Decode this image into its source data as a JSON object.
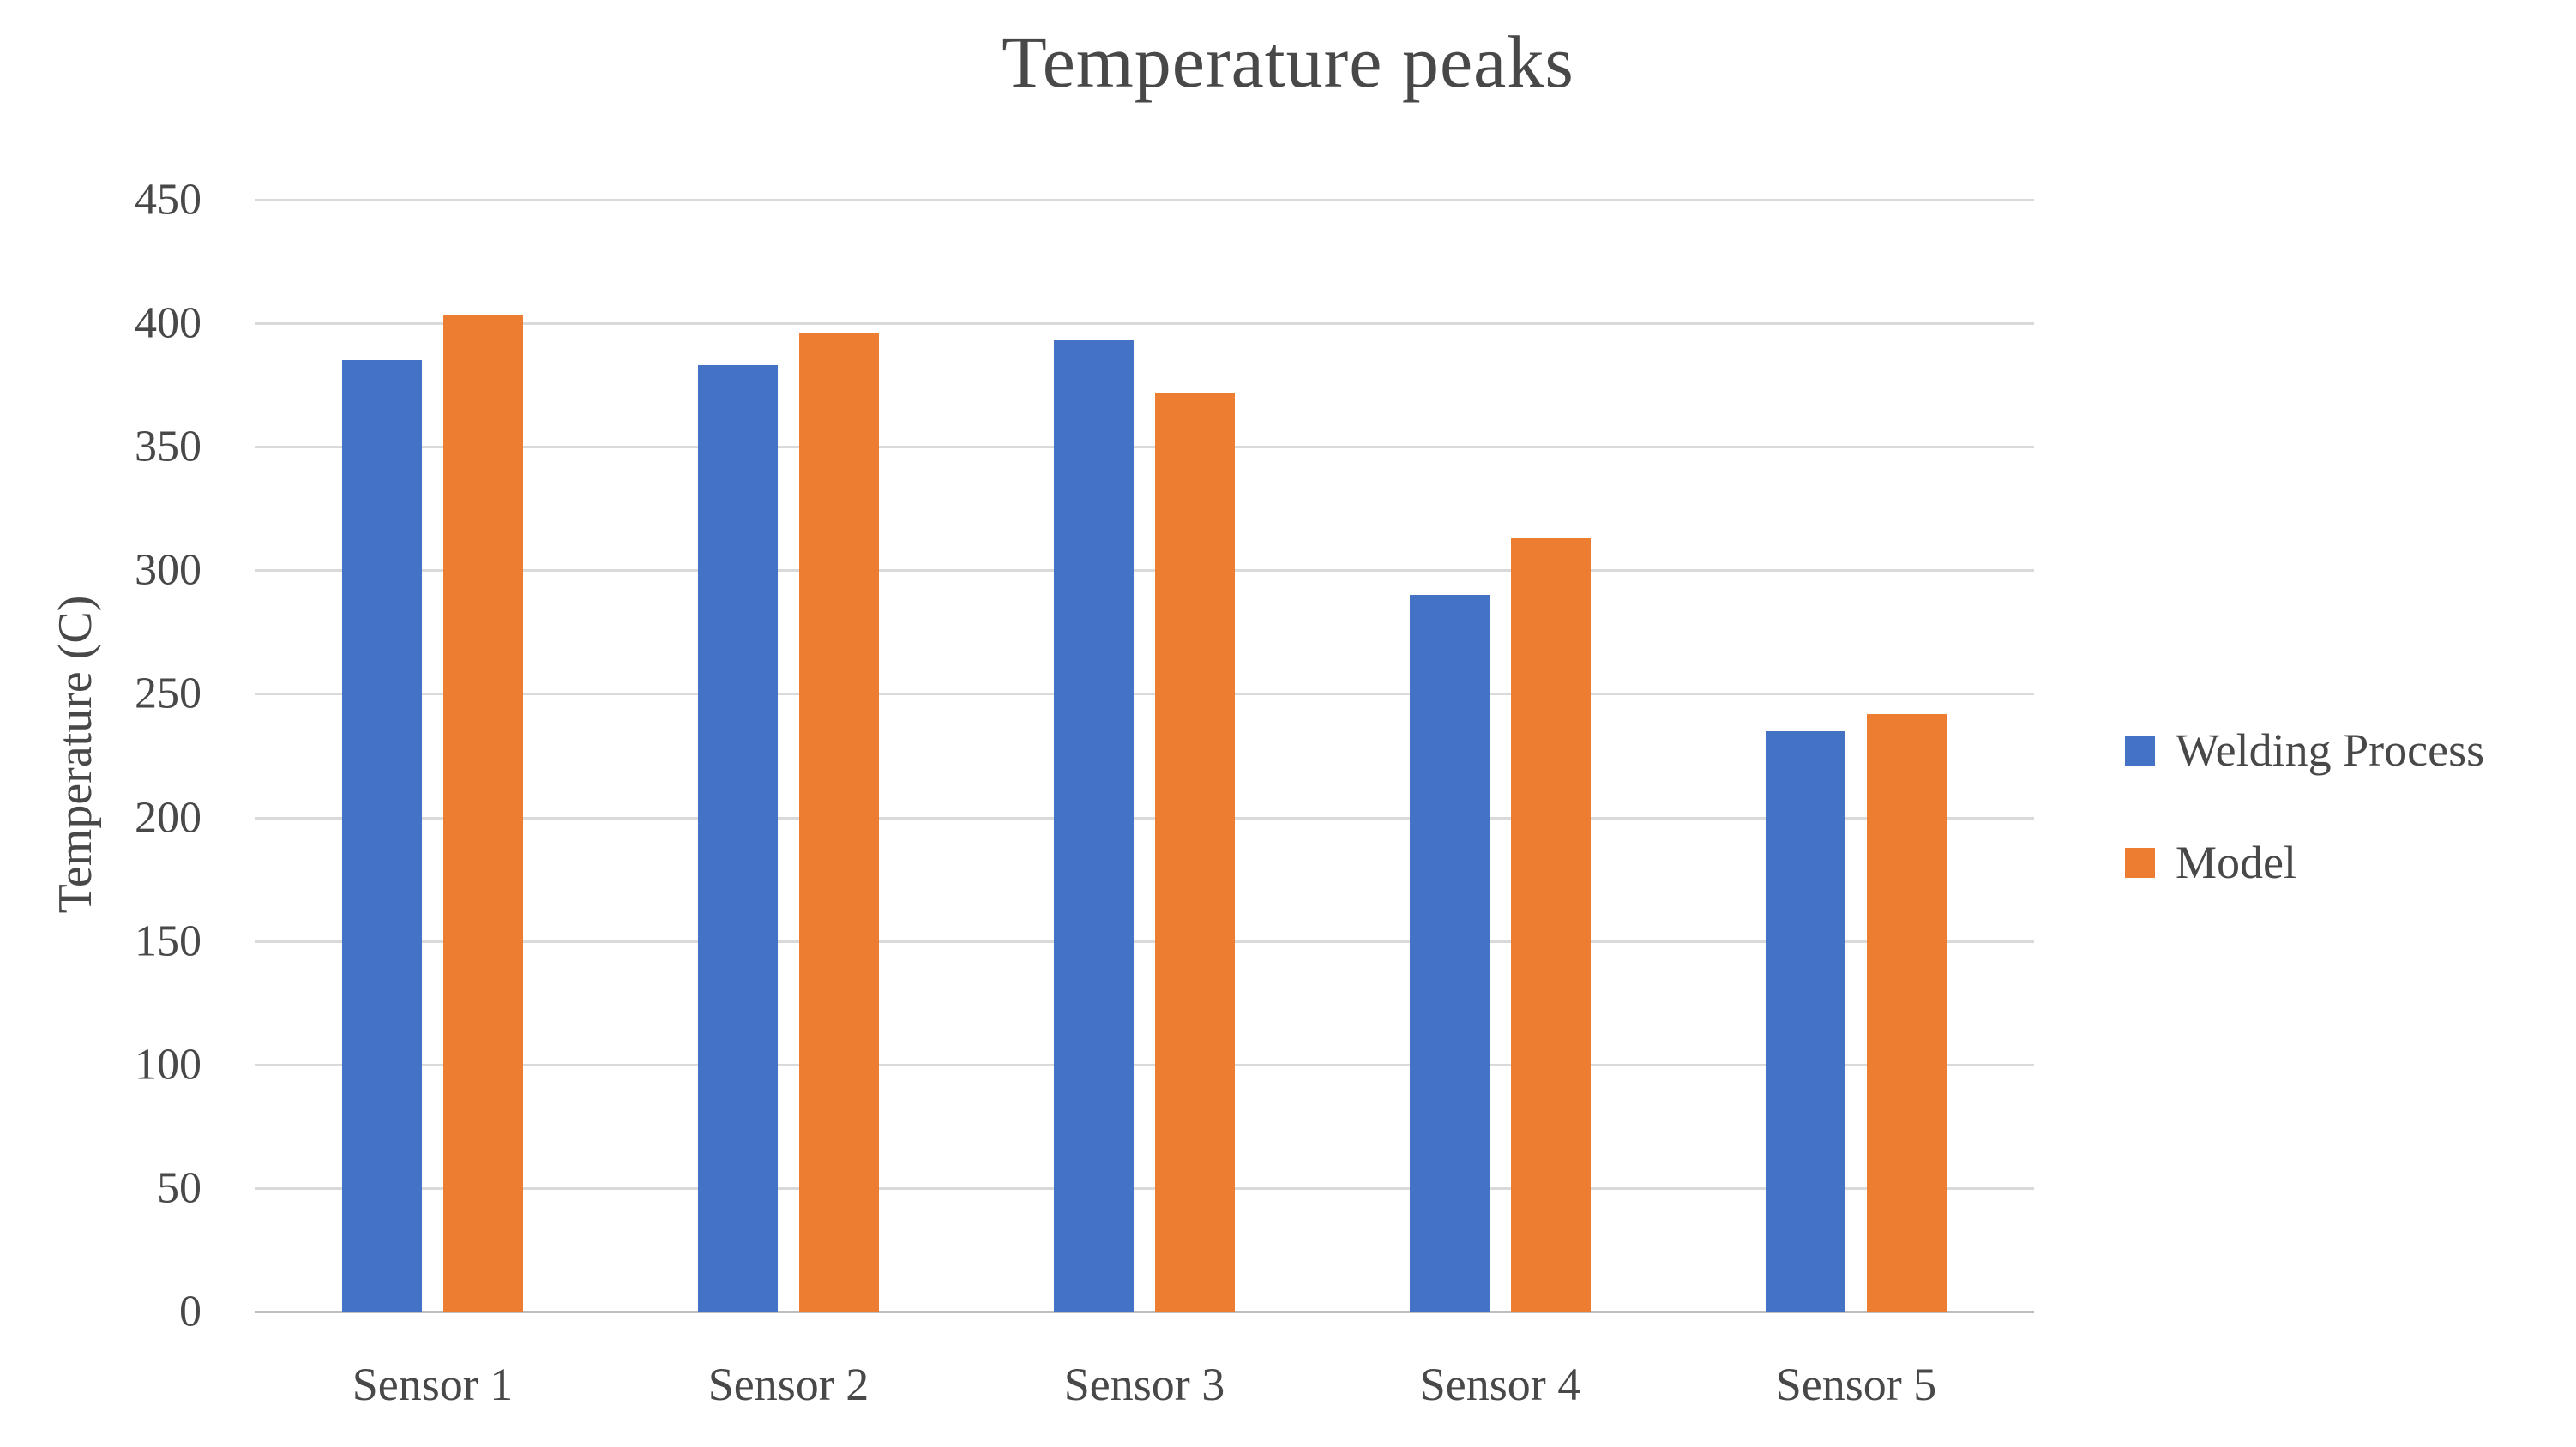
{
  "chart_data": {
    "type": "bar",
    "title": "Temperature peaks",
    "xlabel": "",
    "ylabel": "Temperature (C)",
    "categories": [
      "Sensor 1",
      "Sensor 2",
      "Sensor 3",
      "Sensor 4",
      "Sensor 5"
    ],
    "series": [
      {
        "name": "Welding Process",
        "color": "#4472C4",
        "values": [
          385,
          383,
          393,
          290,
          235
        ]
      },
      {
        "name": "Model",
        "color": "#ED7D31",
        "values": [
          403,
          396,
          372,
          313,
          242
        ]
      }
    ],
    "ylim": [
      0,
      450
    ],
    "ytick_step": 50,
    "yticks": [
      0,
      50,
      100,
      150,
      200,
      250,
      300,
      350,
      400,
      450
    ],
    "grid": true,
    "legend_position": "right"
  },
  "colors": {
    "grid": "#d9d9d9",
    "baseline": "#bdbdbd",
    "text": "#484848",
    "background": "#ffffff"
  }
}
